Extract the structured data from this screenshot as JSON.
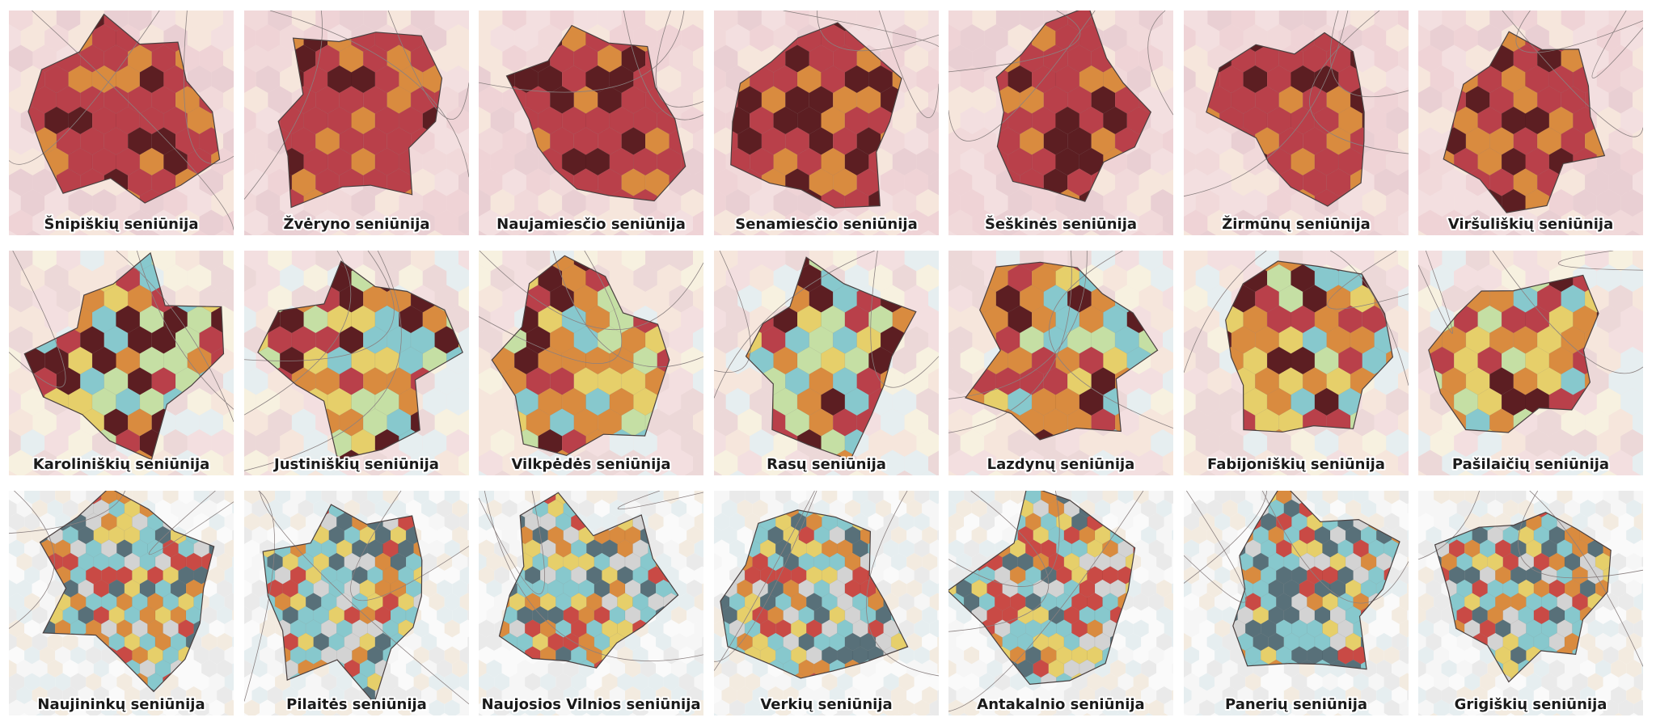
{
  "tiles": [
    {
      "label": "Šnipiškių seniūnija"
    },
    {
      "label": "Žvėryno seniūnija"
    },
    {
      "label": "Naujamiesčio seniūnija"
    },
    {
      "label": "Senamiesčio seniūnija"
    },
    {
      "label": "Šeškinės seniūnija"
    },
    {
      "label": "Žirmūnų seniūnija"
    },
    {
      "label": "Viršuliškių seniūnija"
    },
    {
      "label": "Karoliniškių seniūnija"
    },
    {
      "label": "Justiniškių seniūnija"
    },
    {
      "label": "Vilkpėdės seniūnija"
    },
    {
      "label": "Rasų seniūnija"
    },
    {
      "label": "Lazdynų seniūnija"
    },
    {
      "label": "Fabijoniškių seniūnija"
    },
    {
      "label": "Pašilaičių seniūnija"
    },
    {
      "label": "Naujininkų seniūnija"
    },
    {
      "label": "Pilaitės seniūnija"
    },
    {
      "label": "Naujosios Vilnios seniūnija"
    },
    {
      "label": "Verkių seniūnija"
    },
    {
      "label": "Antakalnio seniūnija"
    },
    {
      "label": "Panerių seniūnija"
    },
    {
      "label": "Grigiškių seniūnija"
    }
  ]
}
